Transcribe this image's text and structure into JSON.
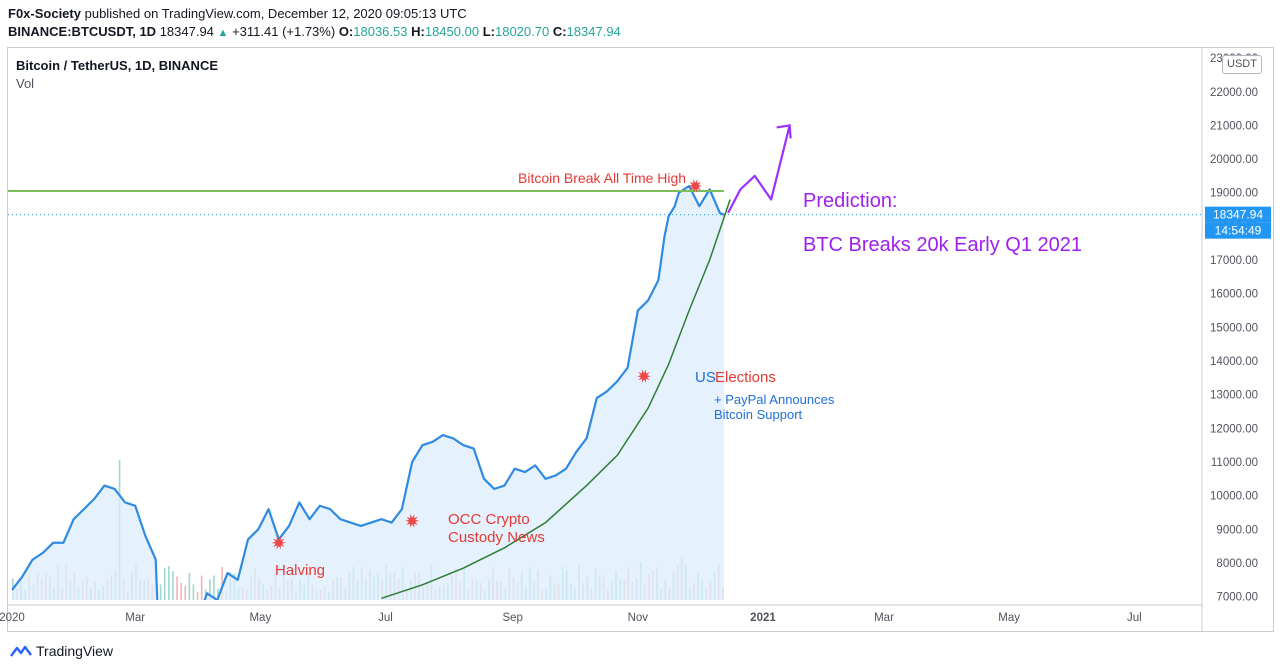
{
  "header": {
    "author": "F0x-Society",
    "published_text": "published on TradingView.com, December 12, 2020 09:05:13 UTC",
    "symbol": "BINANCE:BTCUSDT, 1D",
    "last": "18347.94",
    "change_arrow": "▲",
    "change": "+311.41 (+1.73%)",
    "o_label": "O:",
    "o_value": "18036.53",
    "h_label": "H:",
    "h_value": "18450.00",
    "l_label": "L:",
    "l_value": "18020.70",
    "c_label": "C:",
    "c_value": "18347.94"
  },
  "legend": {
    "symbol_title": "Bitcoin / TetherUS, 1D, BINANCE",
    "volume_label": "Vol"
  },
  "currency_label": "USDT",
  "price_badge": "18347.94",
  "countdown_badge": "14:54:49",
  "annotations": {
    "ath": "Bitcoin Break All Time High",
    "us": "US",
    "elections": "Elections",
    "paypal_line1": "+ PayPal Announces",
    "paypal_line2": "Bitcoin Support",
    "occ_line1": "OCC Crypto",
    "occ_line2": "Custody News",
    "halving": "Halving",
    "prediction_line1": "Prediction:",
    "prediction_line2": "BTC Breaks 20k Early Q1 2021"
  },
  "footer": {
    "brand": "TradingView"
  },
  "colors": {
    "price_line": "#2f8ae2",
    "area_fill": "#dceefc",
    "horizontal_level": "#7cbf5a",
    "trend_curve": "#2e7d32",
    "prediction_arrow": "#9b30ff",
    "event_marker": "#f04848",
    "badge_blue": "#2196f3"
  },
  "chart_data": {
    "type": "line",
    "title": "Bitcoin / TetherUS, 1D, BINANCE",
    "x_ticks": [
      "2020",
      "Mar",
      "May",
      "Jul",
      "Sep",
      "Nov",
      "2021",
      "Mar",
      "May",
      "Jul"
    ],
    "y_ticks": [
      7000,
      8000,
      9000,
      10000,
      11000,
      12000,
      13000,
      14000,
      15000,
      16000,
      17000,
      18000,
      19000,
      20000,
      21000,
      22000,
      23000
    ],
    "y_tick_labels": [
      "7000.00",
      "8000.00",
      "9000.00",
      "10000.00",
      "11000.00",
      "12000.00",
      "13000.00",
      "14000.00",
      "15000.00",
      "16000.00",
      "17000.00",
      "18000.00",
      "19000.00",
      "20000.00",
      "21000.00",
      "22000.00",
      "23000.00"
    ],
    "ylim": [
      6900,
      23300
    ],
    "xlim_days": [
      -2,
      580
    ],
    "series": [
      {
        "x_days": [
          0,
          5,
          10,
          15,
          20,
          25,
          30,
          35,
          40,
          45,
          50,
          55,
          60,
          65,
          70,
          72,
          75,
          80,
          85,
          90,
          95,
          100,
          105,
          110,
          115,
          120,
          125,
          130,
          135,
          140,
          145,
          150,
          155,
          160,
          165,
          170,
          175,
          180,
          185,
          190,
          195,
          200,
          205,
          210,
          215,
          220,
          225,
          230,
          235,
          240,
          245,
          250,
          255,
          260,
          265,
          270,
          275,
          280,
          285,
          290,
          295,
          300,
          305,
          310,
          315,
          318,
          320,
          323,
          325,
          330,
          335,
          340,
          345,
          347
        ],
        "values": [
          7200,
          7600,
          8100,
          8300,
          8600,
          8600,
          9300,
          9600,
          9900,
          10300,
          10200,
          9800,
          9700,
          8800,
          8100,
          5000,
          5800,
          6700,
          6800,
          6200,
          7100,
          6900,
          7700,
          7500,
          8700,
          9000,
          9600,
          8700,
          9100,
          9800,
          9300,
          9700,
          9600,
          9300,
          9200,
          9100,
          9200,
          9300,
          9200,
          9600,
          11000,
          11500,
          11600,
          11800,
          11700,
          11500,
          11400,
          10500,
          10200,
          10300,
          10800,
          10700,
          10900,
          10500,
          10600,
          10800,
          11300,
          11700,
          12900,
          13100,
          13400,
          13800,
          15500,
          15800,
          16400,
          17700,
          18300,
          18600,
          19000,
          19200,
          18600,
          19100,
          18400,
          18348
        ]
      }
    ],
    "volume_note": "Volume histogram bars (Vol) shown at bottom, unlabeled magnitudes",
    "horizontal_level": 19050,
    "trend_curve": {
      "x_days": [
        180,
        200,
        220,
        240,
        260,
        280,
        295,
        310,
        320,
        330,
        340,
        350
      ],
      "values": [
        6950,
        7350,
        7850,
        8450,
        9200,
        10300,
        11200,
        12600,
        13900,
        15500,
        17000,
        18800
      ]
    },
    "prediction_path": {
      "x_days": [
        349,
        355,
        362,
        370,
        379
      ],
      "values": [
        18400,
        19100,
        19500,
        18800,
        21000
      ]
    },
    "events": [
      {
        "label": "Halving",
        "x_day": 130,
        "value": 8600
      },
      {
        "label": "OCC Crypto Custody News",
        "x_day": 195,
        "value": 9250
      },
      {
        "label": "US Elections",
        "x_day": 308,
        "value": 13550
      },
      {
        "label": "Bitcoin Break All Time High",
        "x_day": 333,
        "value": 19200
      }
    ],
    "grid": false
  }
}
